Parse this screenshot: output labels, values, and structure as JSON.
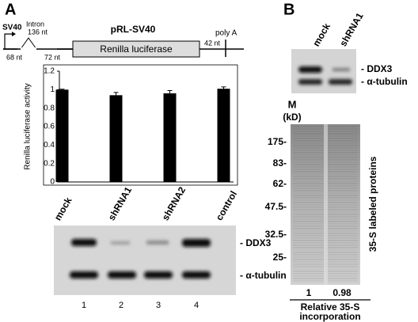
{
  "panel_a": {
    "label": "A",
    "construct": {
      "title": "pRL-SV40",
      "promoter": "SV40",
      "intron": "Intron",
      "intron_length": "136 nt",
      "segment_1": "68 nt",
      "segment_2": "72 nt",
      "gene": "Renilla luciferase",
      "segment_3": "42 nt",
      "polya": "poly A"
    },
    "blot": {
      "bands": [
        "- DDX3",
        "- α-tubulin"
      ],
      "lanes": [
        "1",
        "2",
        "3",
        "4"
      ]
    }
  },
  "chart_data": {
    "type": "bar",
    "y_label": "Renilla luciferase activity",
    "categories": [
      "mock",
      "shRNA1",
      "shRNA2",
      "control"
    ],
    "values": [
      1,
      0.94,
      0.96,
      1.01
    ],
    "errors": [
      0.005,
      0.03,
      0.03,
      0.02
    ],
    "color": "#000000",
    "ylim": [
      0,
      1.2
    ],
    "yticks": [
      0,
      0.2,
      0.4,
      0.6,
      0.8,
      1,
      1.2
    ]
  },
  "panel_b": {
    "label": "B",
    "lanes": [
      "mock",
      "shRNA1"
    ],
    "blot": {
      "bands": [
        "- DDX3",
        "- α-tubulin"
      ]
    },
    "marker_title": "M",
    "marker_unit": "(kD)",
    "markers": [
      "175-",
      "83-",
      "62-",
      "47.5-",
      "32.5-",
      "25-"
    ],
    "gel_label": "35-S labeled proteins",
    "incorporation": [
      "1",
      "0.98"
    ],
    "incorporation_label": [
      "Relative 35-S",
      "incorporation"
    ]
  }
}
